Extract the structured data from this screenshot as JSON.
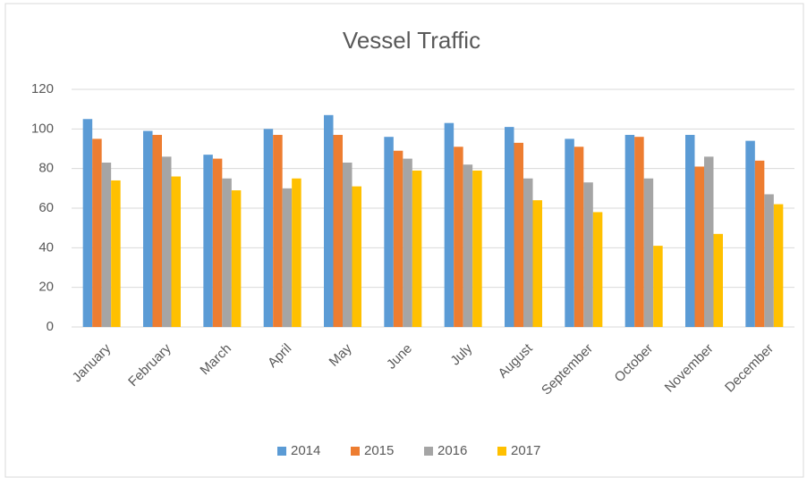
{
  "chart_data": {
    "type": "bar",
    "title": "Vessel Traffic",
    "categories": [
      "January",
      "February",
      "March",
      "April",
      "May",
      "June",
      "July",
      "August",
      "September",
      "October",
      "November",
      "December"
    ],
    "series": [
      {
        "name": "2014",
        "color": "#5b9bd5",
        "values": [
          105,
          99,
          87,
          100,
          107,
          96,
          103,
          101,
          95,
          97,
          97,
          94
        ]
      },
      {
        "name": "2015",
        "color": "#ed7d31",
        "values": [
          95,
          97,
          85,
          97,
          97,
          89,
          91,
          93,
          91,
          96,
          81,
          84
        ]
      },
      {
        "name": "2016",
        "color": "#a5a5a5",
        "values": [
          83,
          86,
          75,
          70,
          83,
          85,
          82,
          75,
          73,
          75,
          86,
          67
        ]
      },
      {
        "name": "2017",
        "color": "#ffc000",
        "values": [
          74,
          76,
          69,
          75,
          71,
          79,
          79,
          64,
          58,
          41,
          47,
          62
        ]
      }
    ],
    "ylim": [
      0,
      120
    ],
    "yticks": [
      0,
      20,
      40,
      60,
      80,
      100,
      120
    ],
    "grid": true,
    "legend": "bottom"
  }
}
